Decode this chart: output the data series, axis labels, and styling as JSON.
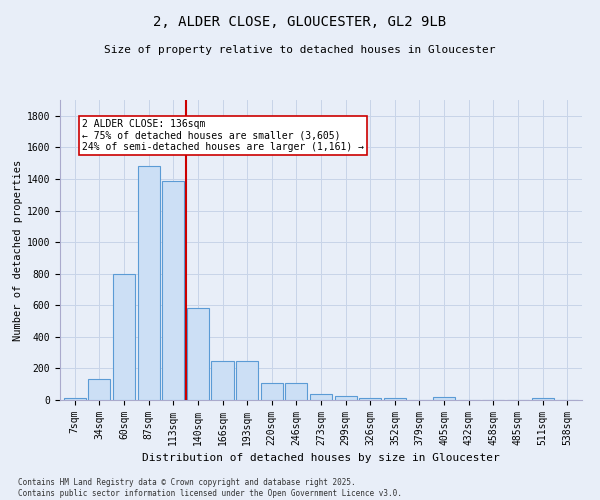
{
  "title1": "2, ALDER CLOSE, GLOUCESTER, GL2 9LB",
  "title2": "Size of property relative to detached houses in Gloucester",
  "xlabel": "Distribution of detached houses by size in Gloucester",
  "ylabel": "Number of detached properties",
  "bar_labels": [
    "7sqm",
    "34sqm",
    "60sqm",
    "87sqm",
    "113sqm",
    "140sqm",
    "166sqm",
    "193sqm",
    "220sqm",
    "246sqm",
    "273sqm",
    "299sqm",
    "326sqm",
    "352sqm",
    "379sqm",
    "405sqm",
    "432sqm",
    "458sqm",
    "485sqm",
    "511sqm",
    "538sqm"
  ],
  "bar_values": [
    10,
    130,
    800,
    1480,
    1390,
    580,
    250,
    250,
    110,
    110,
    35,
    25,
    10,
    10,
    0,
    20,
    0,
    0,
    0,
    10,
    0
  ],
  "bar_color": "#ccdff5",
  "bar_edge_color": "#5b9bd5",
  "red_line_x": 4.5,
  "red_line_color": "#cc0000",
  "annotation_text": "2 ALDER CLOSE: 136sqm\n← 75% of detached houses are smaller (3,605)\n24% of semi-detached houses are larger (1,161) →",
  "annotation_box_edge": "#cc0000",
  "annotation_box_face": "#ffffff",
  "ylim": [
    0,
    1900
  ],
  "yticks": [
    0,
    200,
    400,
    600,
    800,
    1000,
    1200,
    1400,
    1600,
    1800
  ],
  "grid_color": "#c8d4e8",
  "bg_color": "#e8eef8",
  "footer1": "Contains HM Land Registry data © Crown copyright and database right 2025.",
  "footer2": "Contains public sector information licensed under the Open Government Licence v3.0.",
  "title1_fontsize": 10,
  "title2_fontsize": 8,
  "xlabel_fontsize": 8,
  "ylabel_fontsize": 7.5,
  "tick_fontsize": 7,
  "footer_fontsize": 5.5,
  "ann_fontsize": 7
}
